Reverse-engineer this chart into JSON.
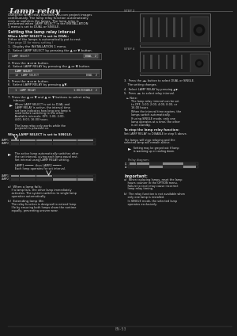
{
  "bg_color": "#1a1a1a",
  "text_color": "#e0e0e0",
  "dim_text_color": "#aaaaaa",
  "title": "Lamp relay",
  "page": "EN-53",
  "title_font_size": 7.5,
  "body_font_size": 2.8,
  "small_font_size": 2.5,
  "line_color": "#666666",
  "menu_bg": "#2a2a2a",
  "menu_border": "#666666",
  "menu_header_bg": "#404040",
  "menu_outer_bg": "#252525",
  "menu_selected_bg": "#3a3a3a",
  "bar_active": "#888888",
  "bar_inactive": "#333333",
  "bar_bg": "#1e1e1e",
  "projector_bg": "#1e1e1e",
  "projector_border": "#777777",
  "projector_slot": "#444444",
  "projector_panel": "#2a2a2a",
  "projector_lens": "#111111"
}
